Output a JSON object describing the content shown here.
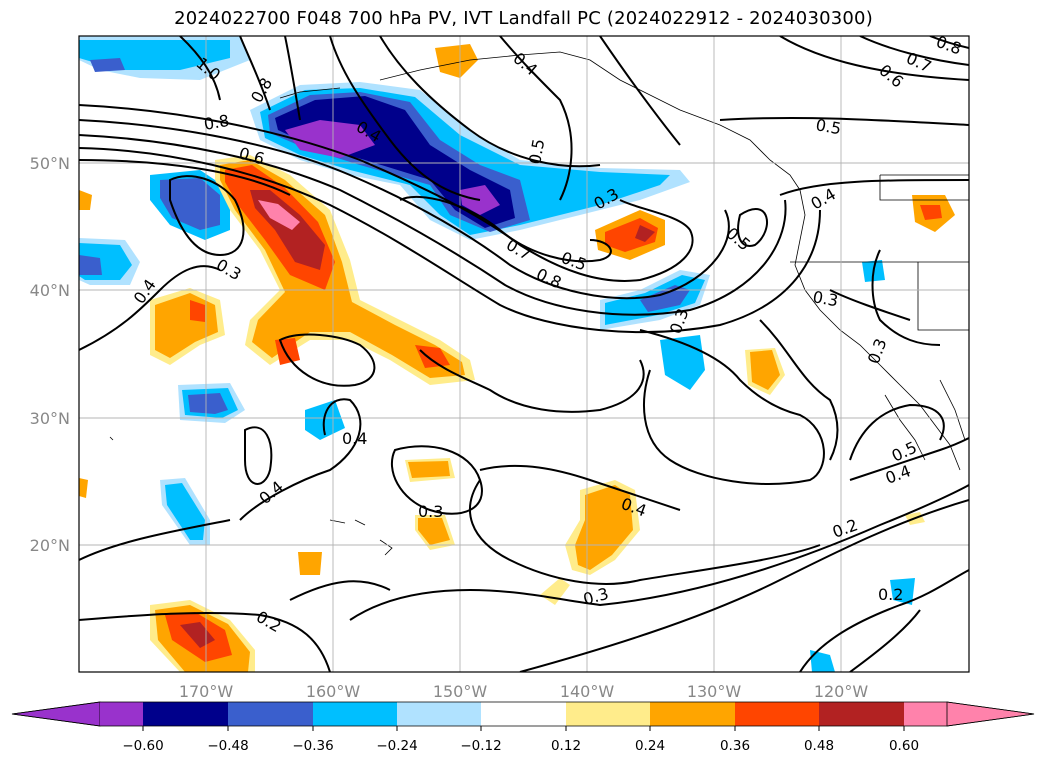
{
  "title": "2024022700 F048 700 hPa PV, IVT Landfall PC (2024022912 - 2024030300)",
  "map": {
    "lon_ticks": [
      "170°W",
      "160°W",
      "150°W",
      "140°W",
      "130°W",
      "120°W"
    ],
    "lat_ticks": [
      "50°N",
      "40°N",
      "30°N",
      "20°N"
    ],
    "contour_labels": [
      "0.8",
      "1.0",
      "0.4",
      "0.5",
      "0.6",
      "0.7",
      "0.8",
      "0.5",
      "0.6",
      "0.8",
      "0.7",
      "0.3",
      "0.5",
      "0.5",
      "0.8",
      "0.4",
      "0.3",
      "0.4",
      "0.3",
      "0.3",
      "0.4",
      "0.4",
      "0.3",
      "0.4",
      "0.4",
      "0.2",
      "0.3",
      "0.2",
      "0.2",
      "0.5",
      "0.4",
      "0.3"
    ]
  },
  "colorbar": {
    "tick_labels": [
      "−0.60",
      "−0.48",
      "−0.36",
      "−0.24",
      "−0.12",
      "0.12",
      "0.24",
      "0.36",
      "0.48",
      "0.60"
    ],
    "colors": [
      "#9932cc",
      "#00008b",
      "#3a5fcd",
      "#00bfff",
      "#b0e2ff",
      "#ffffff",
      "#ffec8b",
      "#ffa500",
      "#ff4500",
      "#b22222",
      "#ff82ab"
    ]
  }
}
